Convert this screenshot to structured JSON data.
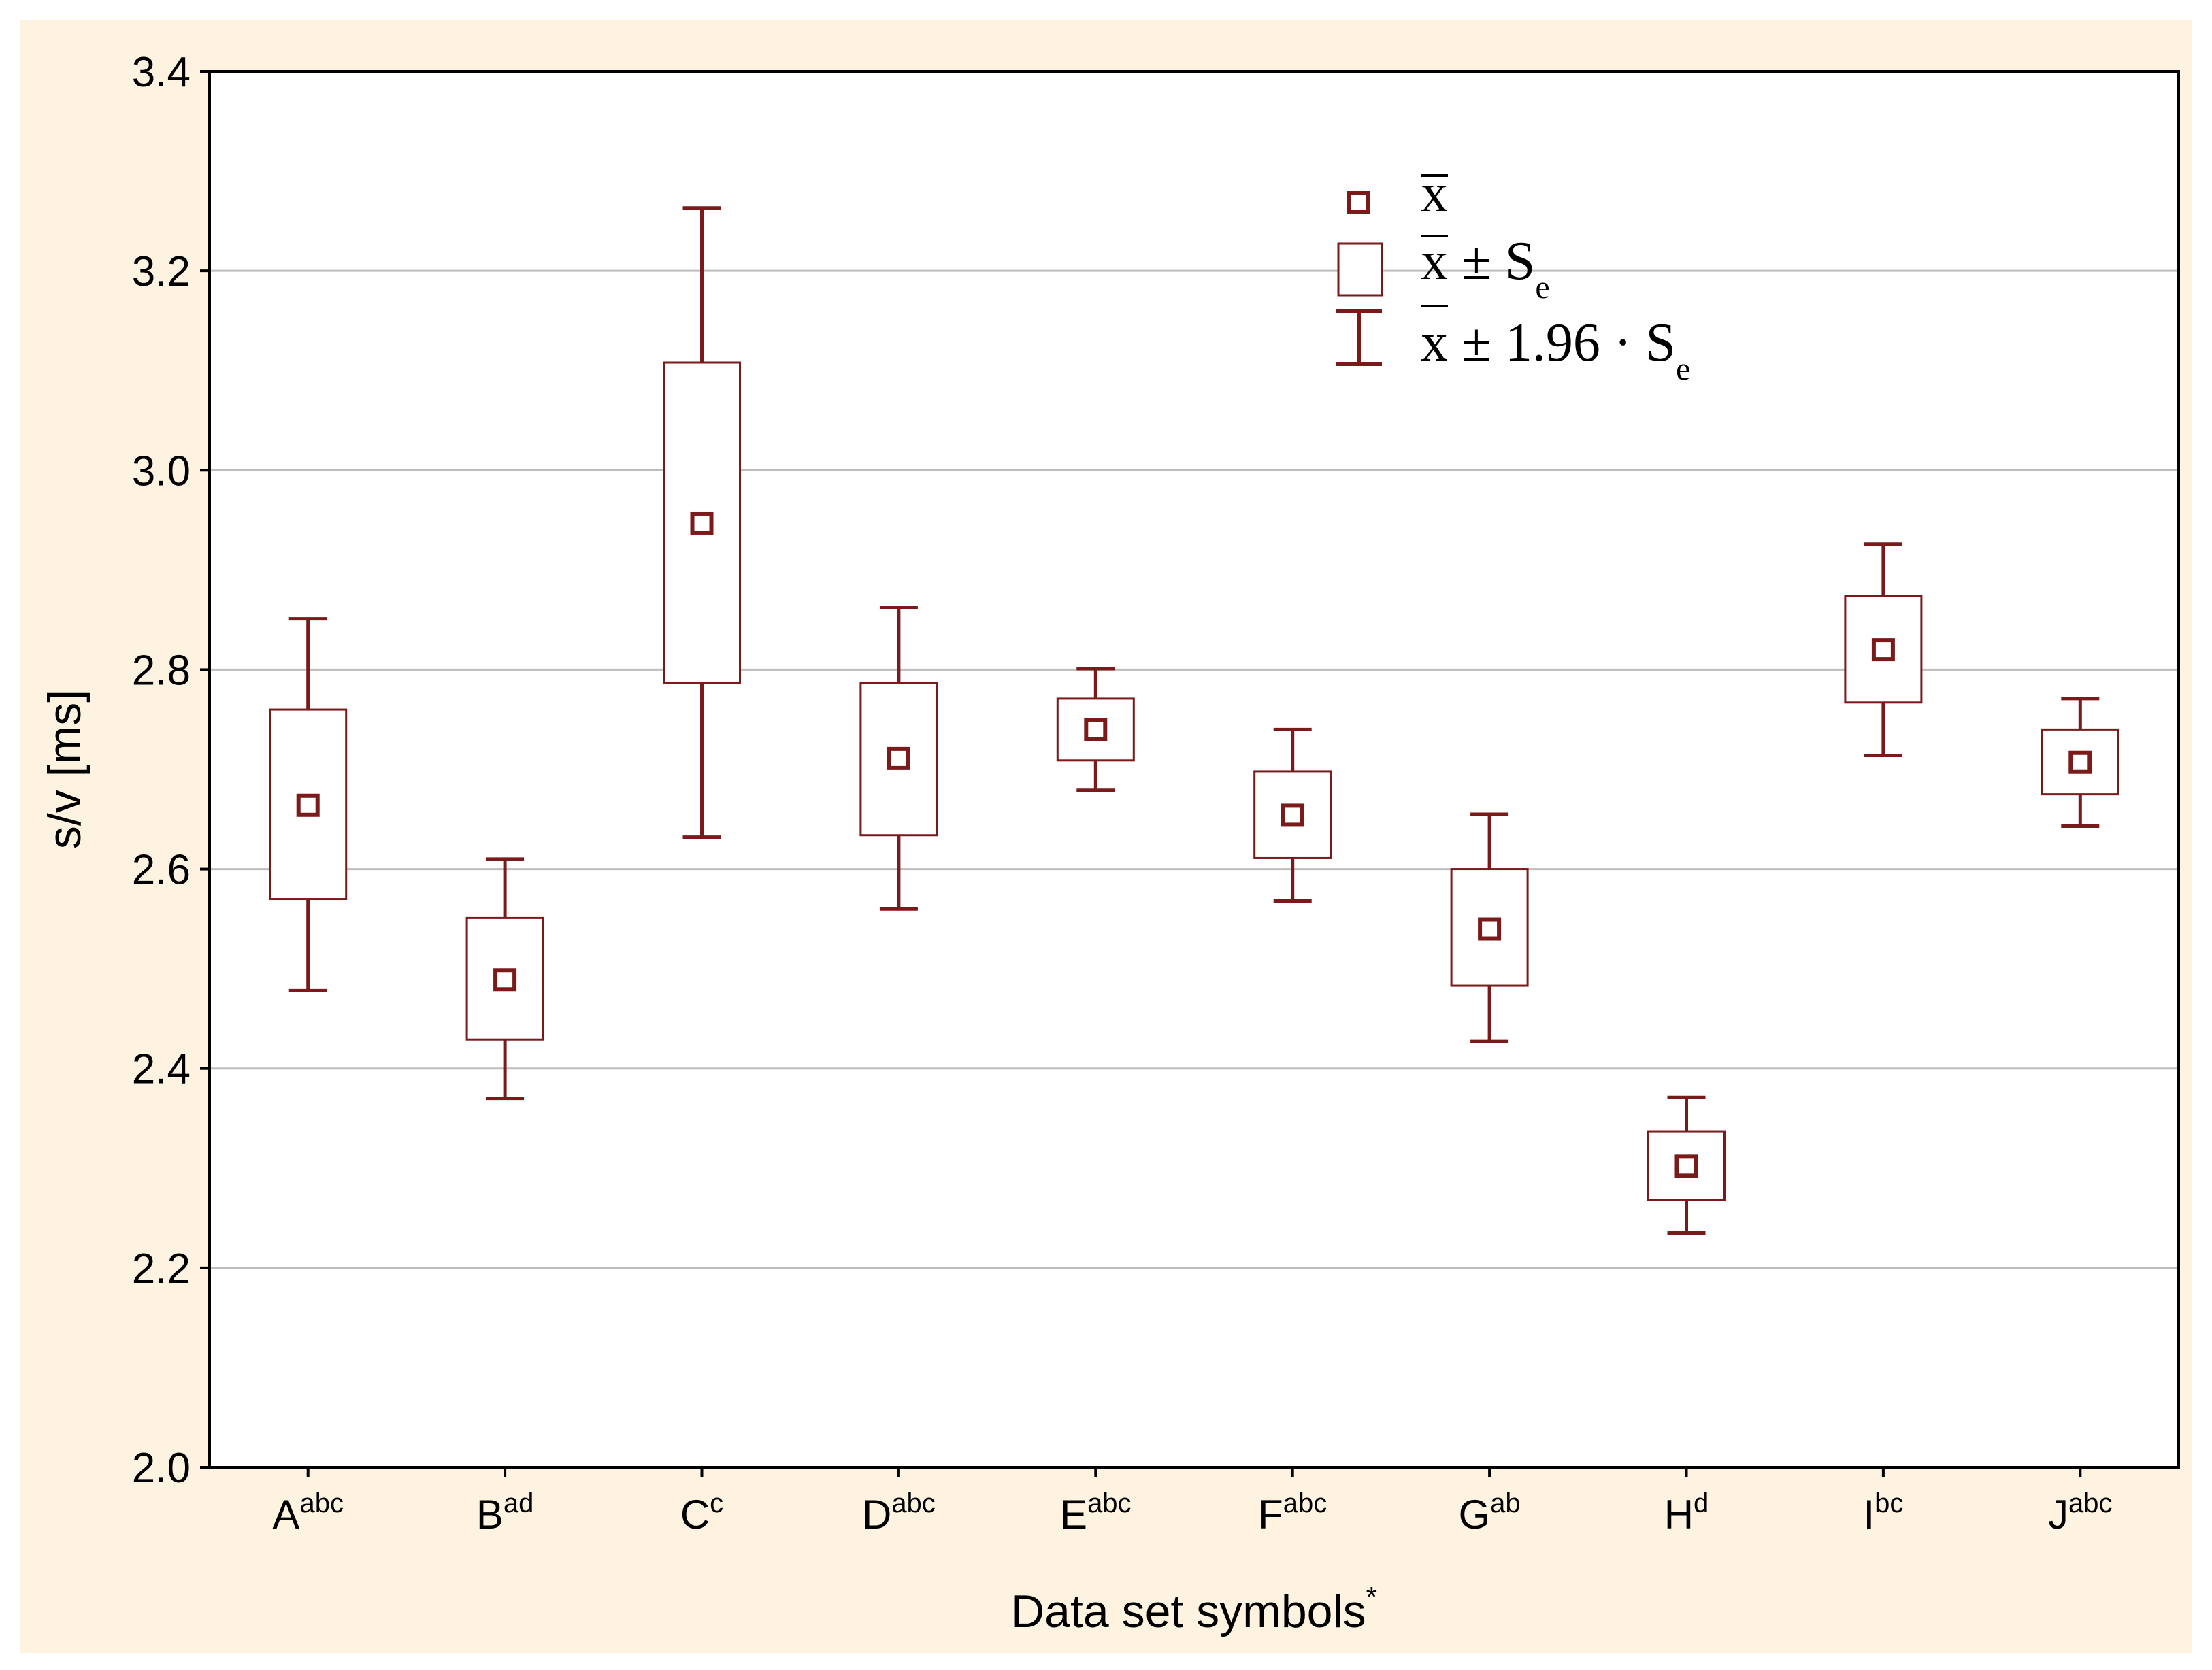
{
  "chart_data": {
    "type": "box",
    "ylabel": "s/v [ms]",
    "xlabel": "Data set symbols",
    "xlabel_sup": "*",
    "ylim": [
      2.0,
      3.4
    ],
    "yticks": [
      "2.0",
      "2.2",
      "2.4",
      "2.6",
      "2.8",
      "3.0",
      "3.2",
      "3.4"
    ],
    "grid": true,
    "legend_position": "top-right",
    "categories": [
      {
        "label": "A",
        "sup": "abc",
        "mean": 2.664,
        "se_low": 2.57,
        "se_high": 2.76,
        "ci_low": 2.478,
        "ci_high": 2.851
      },
      {
        "label": "B",
        "sup": "ad",
        "mean": 2.489,
        "se_low": 2.429,
        "se_high": 2.551,
        "ci_low": 2.37,
        "ci_high": 2.61
      },
      {
        "label": "C",
        "sup": "c",
        "mean": 2.947,
        "se_low": 2.787,
        "se_high": 3.108,
        "ci_low": 2.632,
        "ci_high": 3.263
      },
      {
        "label": "D",
        "sup": "abc",
        "mean": 2.711,
        "se_low": 2.634,
        "se_high": 2.787,
        "ci_low": 2.56,
        "ci_high": 2.862
      },
      {
        "label": "E",
        "sup": "abc",
        "mean": 2.74,
        "se_low": 2.709,
        "se_high": 2.771,
        "ci_low": 2.679,
        "ci_high": 2.801
      },
      {
        "label": "F",
        "sup": "abc",
        "mean": 2.654,
        "se_low": 2.611,
        "se_high": 2.698,
        "ci_low": 2.568,
        "ci_high": 2.74
      },
      {
        "label": "G",
        "sup": "ab",
        "mean": 2.54,
        "se_low": 2.483,
        "se_high": 2.6,
        "ci_low": 2.427,
        "ci_high": 2.655
      },
      {
        "label": "H",
        "sup": "d",
        "mean": 2.302,
        "se_low": 2.268,
        "se_high": 2.337,
        "ci_low": 2.235,
        "ci_high": 2.371
      },
      {
        "label": "I",
        "sup": "bc",
        "mean": 2.82,
        "se_low": 2.767,
        "se_high": 2.874,
        "ci_low": 2.714,
        "ci_high": 2.926
      },
      {
        "label": "J",
        "sup": "abc",
        "mean": 2.707,
        "se_low": 2.675,
        "se_high": 2.74,
        "ci_low": 2.643,
        "ci_high": 2.771
      }
    ],
    "legend": {
      "mean_text": "x",
      "se_text": "x ± S",
      "se_sub": "e",
      "ci_text": "x ± 1.96 · S",
      "ci_sub": "e"
    },
    "colors": {
      "page_bg": "#fdf3e0",
      "plot_bg": "#ffffff",
      "series": "#7a1a1a",
      "grid": "#bdbdbd",
      "axis": "#000000"
    }
  }
}
